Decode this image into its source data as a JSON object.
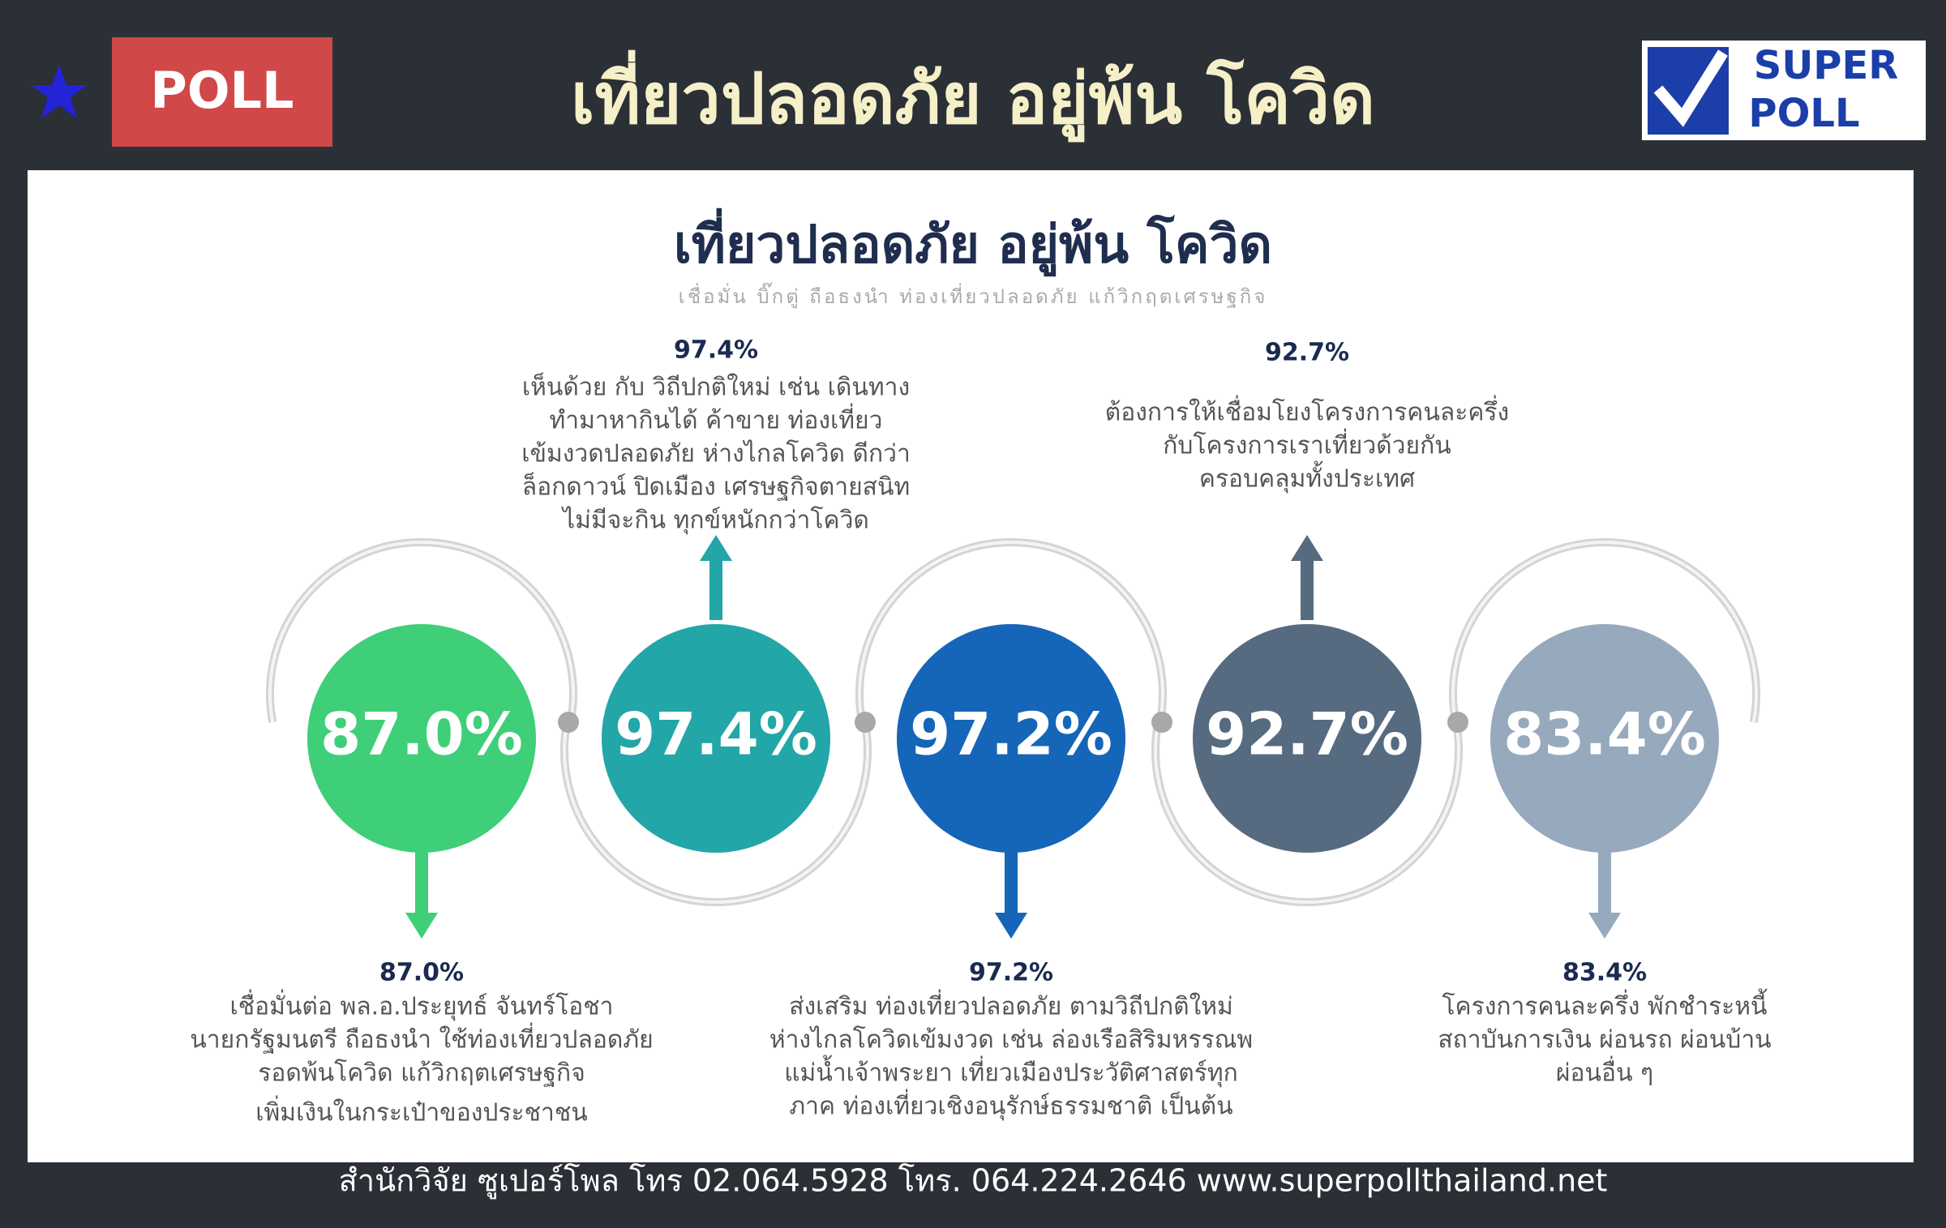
{
  "header": {
    "badge": "POLL",
    "title": "เที่ยวปลอดภัย อยู่พ้น โควิด",
    "logo": [
      "SUPER",
      "POLL"
    ]
  },
  "panel": {
    "title": "เที่ยวปลอดภัย อยู่พ้น โควิด",
    "subtitle": "เชื่อมั่น บิ๊กตู่ ถือธงนำ ท่องเที่ยวปลอดภัย แก้วิกฤตเศรษฐกิจ",
    "items": [
      {
        "value": "87.0%",
        "lines": [
          "เชื่อมั่นต่อ พล.อ.ประยุทธ์ จันทร์โอชา",
          "นายกรัฐมนตรี ถือธงนำ ใช้ท่องเที่ยวปลอดภัย",
          "รอดพ้นโควิด แก้วิกฤตเศรษฐกิจ",
          "เพิ่มเงินในกระเป๋าของประชาชน"
        ]
      },
      {
        "value": "97.4%",
        "lines": [
          "เห็นด้วย กับ วิถีปกติใหม่ เช่น เดินทาง",
          "ทำมาหากินได้ ค้าขาย ท่องเที่ยว",
          "เข้มงวดปลอดภัย ห่างไกลโควิด ดีกว่า",
          "ล็อกดาวน์ ปิดเมือง เศรษฐกิจตายสนิท",
          "ไม่มีจะกิน ทุกข์หนักกว่าโควิด"
        ]
      },
      {
        "value": "97.2%",
        "lines": [
          "ส่งเสริม ท่องเที่ยวปลอดภัย ตามวิถีปกติใหม่",
          "ห่างไกลโควิดเข้มงวด เช่น ล่องเรือสิริมหรรณพ",
          "แม่น้ำเจ้าพระยา เที่ยวเมืองประวัติศาสตร์ทุก",
          "ภาค ท่องเที่ยวเชิงอนุรักษ์ธรรมชาติ เป็นต้น"
        ]
      },
      {
        "value": "92.7%",
        "lines": [
          "ต้องการให้เชื่อมโยงโครงการคนละครึ่ง",
          "กับโครงการเราเที่ยวด้วยกัน",
          "ครอบคลุมทั้งประเทศ"
        ]
      },
      {
        "value": "83.4%",
        "lines": [
          "โครงการคนละครึ่ง พักชำระหนี้",
          "สถาบันการเงิน ผ่อนรถ ผ่อนบ้าน",
          "ผ่อนอื่น ๆ"
        ]
      }
    ]
  },
  "footer": "สำนักวิจัย ซูเปอร์โพล โทร 02.064.5928  โทร. 064.224.2646 www.superpollthailand.net"
}
